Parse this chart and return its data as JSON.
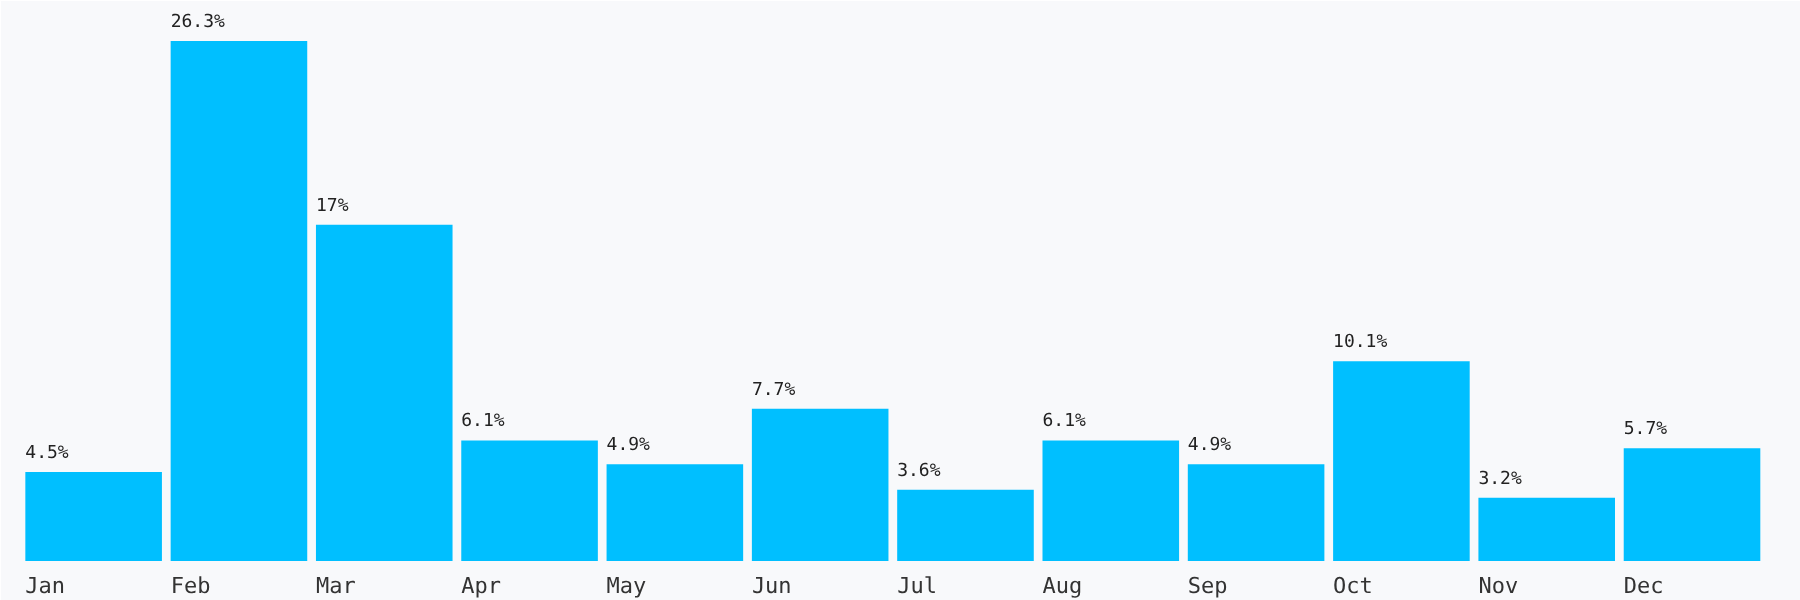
{
  "chart_data": {
    "type": "bar",
    "categories": [
      "Jan",
      "Feb",
      "Mar",
      "Apr",
      "May",
      "Jun",
      "Jul",
      "Aug",
      "Sep",
      "Oct",
      "Nov",
      "Dec"
    ],
    "values": [
      4.5,
      26.3,
      17,
      6.1,
      4.9,
      7.7,
      3.6,
      6.1,
      4.9,
      10.1,
      3.2,
      5.7
    ],
    "value_labels": [
      "4.5%",
      "26.3%",
      "17%",
      "6.1%",
      "4.9%",
      "7.7%",
      "3.6%",
      "6.1%",
      "4.9%",
      "10.1%",
      "3.2%",
      "5.7%"
    ],
    "color": "#00bfff",
    "grid": false
  }
}
